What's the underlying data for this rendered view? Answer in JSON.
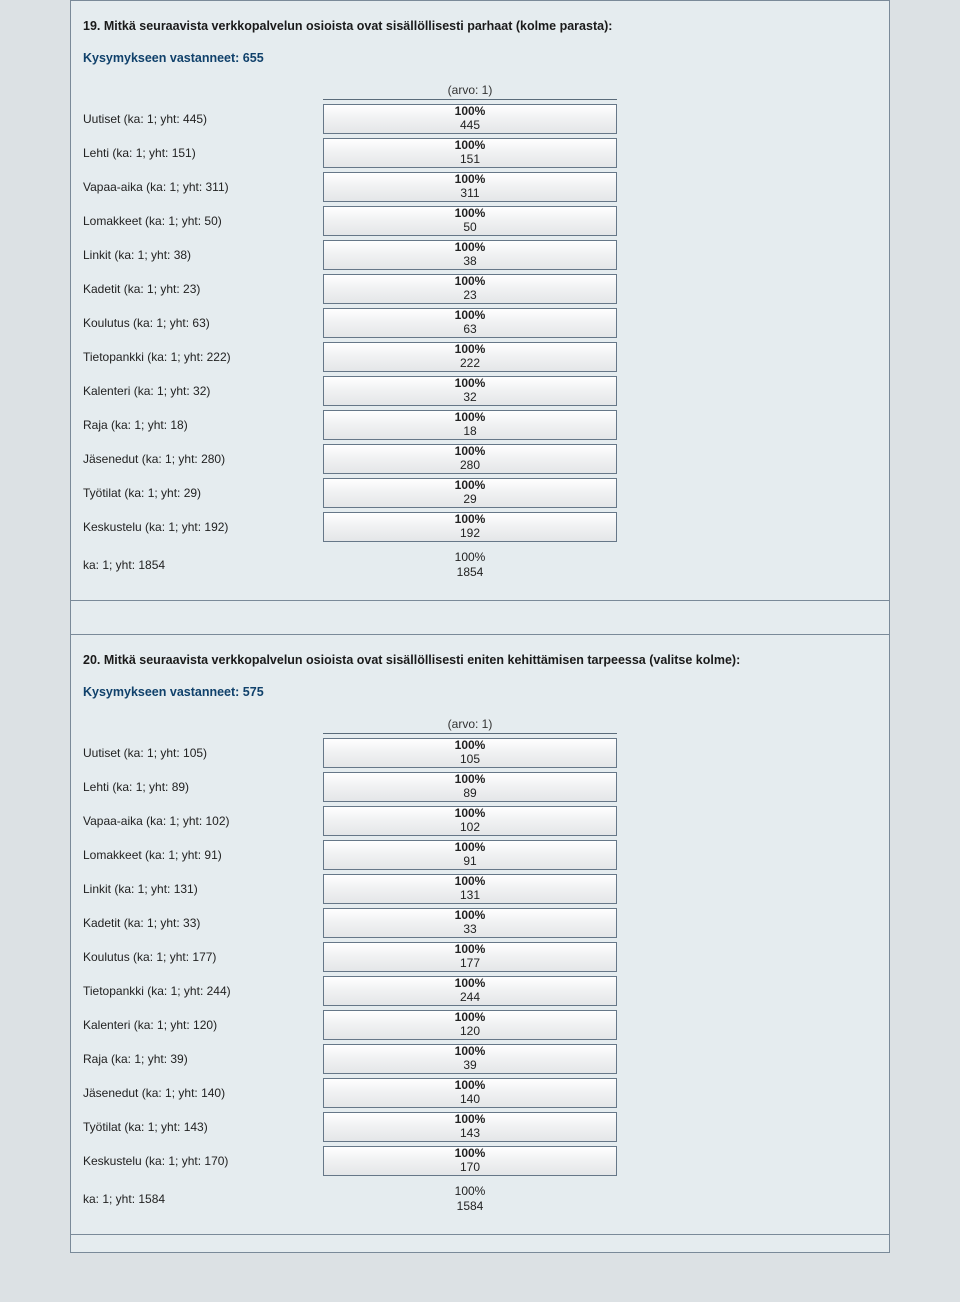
{
  "report": {
    "bar_width_pct": 100,
    "colors": {
      "page_bg": "#dce1e4",
      "panel_bg": "#e5ecef",
      "border": "#7a8a99",
      "accent_text": "#10416b",
      "bar_border": "#667788",
      "bar_grad_top": "#ffffff",
      "bar_grad_bottom": "#e4e6e8"
    },
    "questions": [
      {
        "number": "19",
        "title": "19. Mitkä seuraavista verkkopalvelun osioista ovat sisällöllisesti parhaat (kolme parasta):",
        "respondents_label": "Kysymykseen vastanneet: 655",
        "column_header": "(arvo: 1)",
        "rows": [
          {
            "label": "Uutiset (ka: 1; yht: 445)",
            "pct": "100%",
            "count": "445"
          },
          {
            "label": "Lehti (ka: 1; yht: 151)",
            "pct": "100%",
            "count": "151"
          },
          {
            "label": "Vapaa-aika (ka: 1; yht: 311)",
            "pct": "100%",
            "count": "311"
          },
          {
            "label": "Lomakkeet (ka: 1; yht: 50)",
            "pct": "100%",
            "count": "50"
          },
          {
            "label": "Linkit (ka: 1; yht: 38)",
            "pct": "100%",
            "count": "38"
          },
          {
            "label": "Kadetit (ka: 1; yht: 23)",
            "pct": "100%",
            "count": "23"
          },
          {
            "label": "Koulutus (ka: 1; yht: 63)",
            "pct": "100%",
            "count": "63"
          },
          {
            "label": "Tietopankki (ka: 1; yht: 222)",
            "pct": "100%",
            "count": "222"
          },
          {
            "label": "Kalenteri (ka: 1; yht: 32)",
            "pct": "100%",
            "count": "32"
          },
          {
            "label": "Raja (ka: 1; yht: 18)",
            "pct": "100%",
            "count": "18"
          },
          {
            "label": "Jäsenedut (ka: 1; yht: 280)",
            "pct": "100%",
            "count": "280"
          },
          {
            "label": "Työtilat (ka: 1; yht: 29)",
            "pct": "100%",
            "count": "29"
          },
          {
            "label": "Keskustelu (ka: 1; yht: 192)",
            "pct": "100%",
            "count": "192"
          }
        ],
        "summary": {
          "label": "ka: 1; yht: 1854",
          "pct": "100%",
          "count": "1854"
        }
      },
      {
        "number": "20",
        "title": "20. Mitkä seuraavista verkkopalvelun osioista ovat sisällöllisesti eniten kehittämisen tarpeessa (valitse kolme):",
        "respondents_label": "Kysymykseen vastanneet: 575",
        "column_header": "(arvo: 1)",
        "rows": [
          {
            "label": "Uutiset (ka: 1; yht: 105)",
            "pct": "100%",
            "count": "105"
          },
          {
            "label": "Lehti (ka: 1; yht: 89)",
            "pct": "100%",
            "count": "89"
          },
          {
            "label": "Vapaa-aika (ka: 1; yht: 102)",
            "pct": "100%",
            "count": "102"
          },
          {
            "label": "Lomakkeet (ka: 1; yht: 91)",
            "pct": "100%",
            "count": "91"
          },
          {
            "label": "Linkit (ka: 1; yht: 131)",
            "pct": "100%",
            "count": "131"
          },
          {
            "label": "Kadetit (ka: 1; yht: 33)",
            "pct": "100%",
            "count": "33"
          },
          {
            "label": "Koulutus (ka: 1; yht: 177)",
            "pct": "100%",
            "count": "177"
          },
          {
            "label": "Tietopankki (ka: 1; yht: 244)",
            "pct": "100%",
            "count": "244"
          },
          {
            "label": "Kalenteri (ka: 1; yht: 120)",
            "pct": "100%",
            "count": "120"
          },
          {
            "label": "Raja (ka: 1; yht: 39)",
            "pct": "100%",
            "count": "39"
          },
          {
            "label": "Jäsenedut (ka: 1; yht: 140)",
            "pct": "100%",
            "count": "140"
          },
          {
            "label": "Työtilat (ka: 1; yht: 143)",
            "pct": "100%",
            "count": "143"
          },
          {
            "label": "Keskustelu (ka: 1; yht: 170)",
            "pct": "100%",
            "count": "170"
          }
        ],
        "summary": {
          "label": "ka: 1; yht: 1584",
          "pct": "100%",
          "count": "1584"
        }
      }
    ]
  }
}
